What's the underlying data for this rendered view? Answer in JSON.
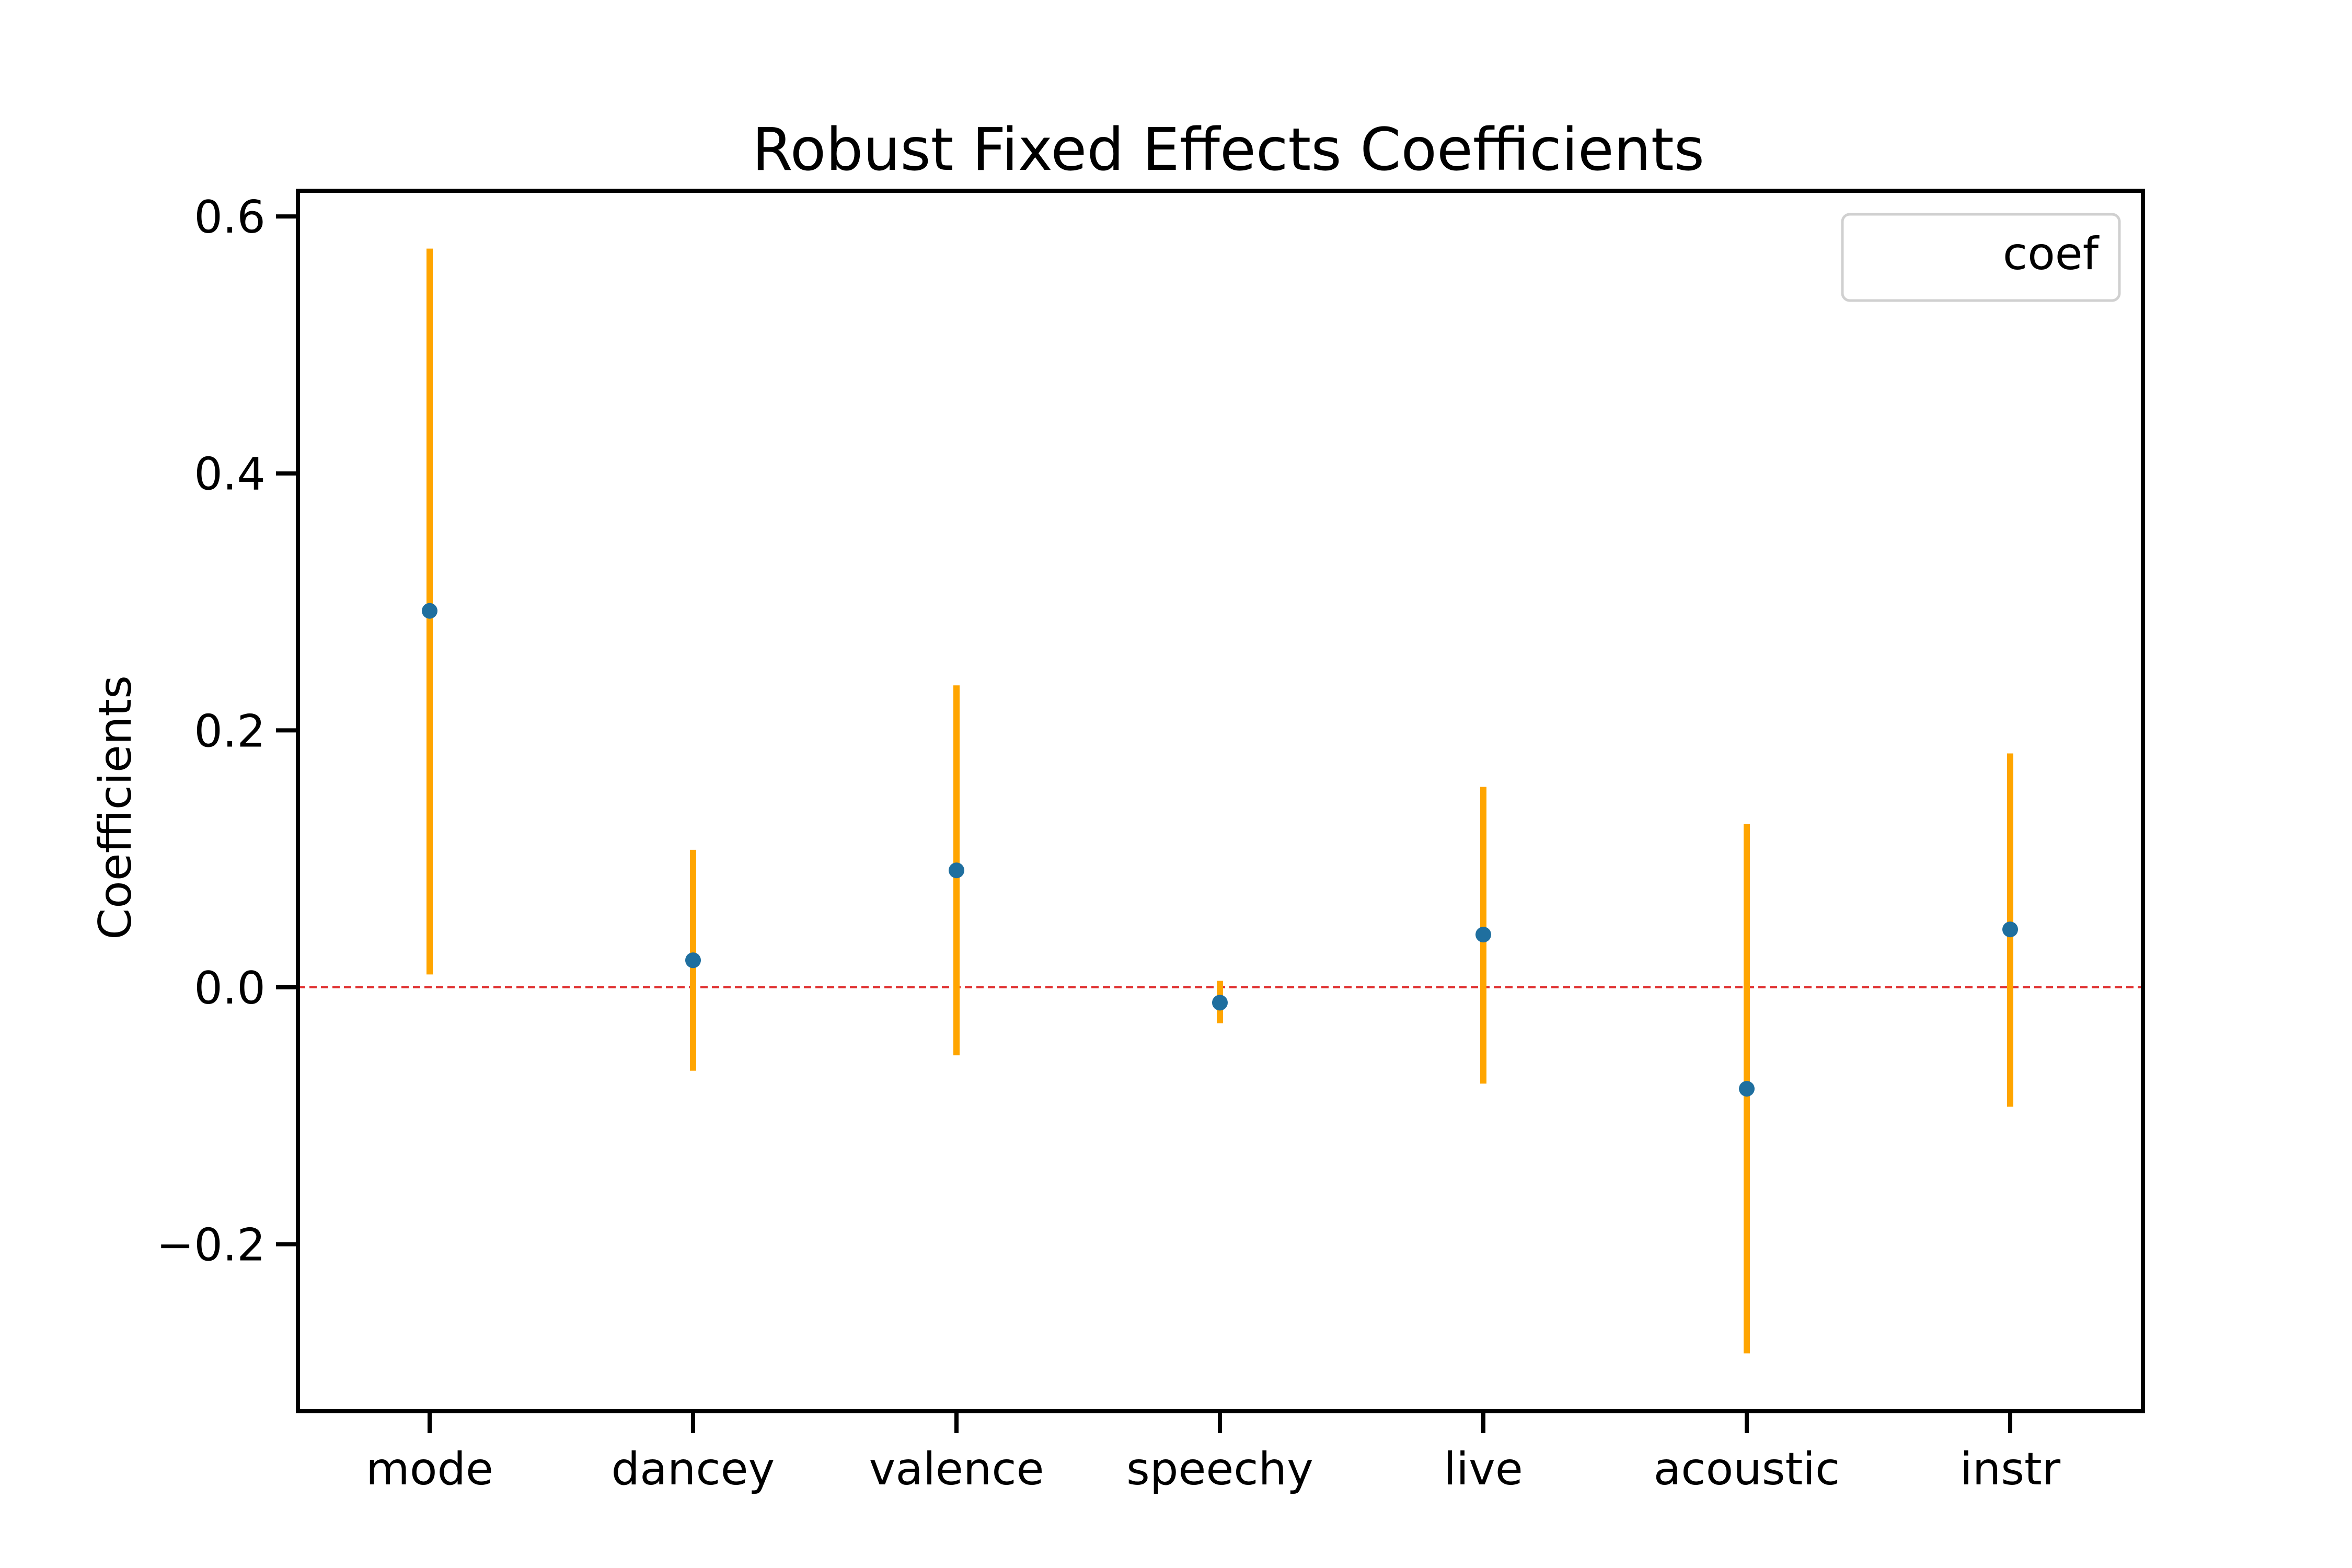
{
  "chart_data": {
    "type": "scatter",
    "title": "Robust Fixed Effects Coefficients",
    "xlabel": "",
    "ylabel": "Coefficients",
    "categories": [
      "mode",
      "dancey",
      "valence",
      "speechy",
      "live",
      "acoustic",
      "instr"
    ],
    "series": [
      {
        "name": "coef",
        "values": [
          0.293,
          0.021,
          0.091,
          -0.012,
          0.041,
          -0.079,
          0.045
        ],
        "ci_low": [
          0.01,
          -0.065,
          -0.053,
          -0.028,
          -0.075,
          -0.285,
          -0.093
        ],
        "ci_high": [
          0.575,
          0.107,
          0.235,
          0.005,
          0.156,
          0.127,
          0.182
        ]
      }
    ],
    "reference_line": {
      "y": 0.0,
      "style": "dashed",
      "color": "#e03030"
    },
    "ylim": [
      -0.33,
      0.62
    ],
    "yticks": [
      -0.2,
      0.0,
      0.2,
      0.4,
      0.6
    ],
    "ytick_labels": [
      "−0.2",
      "0.0",
      "0.2",
      "0.4",
      "0.6"
    ],
    "grid": false,
    "legend": {
      "position": "top-right",
      "entries": [
        "coef"
      ]
    },
    "colors": {
      "point": "#1f6f9f",
      "errorbar": "#ffa500",
      "axis": "#000000"
    }
  }
}
